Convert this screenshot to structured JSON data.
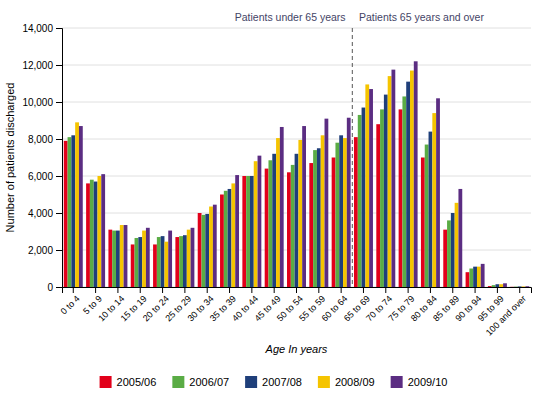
{
  "chart_data": {
    "type": "bar",
    "categories": [
      "0 to 4",
      "5 to 9",
      "10 to 14",
      "15 to 19",
      "20 to 24",
      "25 to 29",
      "30 to 34",
      "35 to 39",
      "40 to 44",
      "45 to 49",
      "50 to 54",
      "55 to 59",
      "60 to 64",
      "65 to 69",
      "70 to 74",
      "75 to 79",
      "80 to 84",
      "85 to 89",
      "90 to 94",
      "95 to 99",
      "100 and over"
    ],
    "series": [
      {
        "name": "2005/06",
        "color": "#e2001a",
        "values": [
          7900,
          5600,
          3100,
          2300,
          2300,
          2700,
          4000,
          5000,
          6000,
          6400,
          6200,
          6700,
          7000,
          8100,
          8800,
          9600,
          7000,
          3100,
          800,
          50,
          10
        ]
      },
      {
        "name": "2006/07",
        "color": "#5aac45",
        "values": [
          8100,
          5800,
          3050,
          2650,
          2700,
          2750,
          3900,
          5200,
          6000,
          6850,
          6600,
          7400,
          7800,
          9300,
          9600,
          10300,
          7700,
          3600,
          1000,
          100,
          20
        ]
      },
      {
        "name": "2007/08",
        "color": "#1f3f7a",
        "values": [
          8200,
          5700,
          3050,
          2700,
          2750,
          2800,
          3950,
          5300,
          6000,
          7200,
          7200,
          7500,
          8200,
          9700,
          10400,
          11100,
          8400,
          4000,
          1100,
          150,
          30
        ]
      },
      {
        "name": "2008/09",
        "color": "#f5c400",
        "values": [
          8900,
          6000,
          3350,
          3050,
          2450,
          3100,
          4350,
          5600,
          6800,
          8050,
          7950,
          8200,
          8050,
          10950,
          11400,
          11700,
          9400,
          4550,
          1100,
          150,
          30
        ]
      },
      {
        "name": "2009/10",
        "color": "#5b2d82",
        "values": [
          8700,
          6100,
          3350,
          3200,
          3050,
          3200,
          4450,
          6050,
          7100,
          8650,
          8700,
          9100,
          9150,
          10700,
          11750,
          12200,
          10200,
          5300,
          1250,
          200,
          40
        ]
      }
    ],
    "xlabel": "Age In years",
    "ylabel": "Number of patients discharged",
    "ylim": [
      0,
      14000
    ],
    "yticks": [
      0,
      {
        "value": 2000,
        "label": "2,000"
      },
      {
        "value": 4000,
        "label": "4,000"
      },
      {
        "value": 6000,
        "label": "6,000"
      },
      {
        "value": 8000,
        "label": "8,000"
      },
      {
        "value": 10000,
        "label": "10,000"
      },
      {
        "value": 12000,
        "label": "12,000"
      },
      {
        "value": 14000,
        "label": "14,000"
      }
    ],
    "annotations": [
      {
        "text": "Patients under 65 years",
        "category": "60 to 64"
      },
      {
        "text": "Patients 65 years and over",
        "category": "65 to 69"
      }
    ],
    "grid": true,
    "legend": "bottom"
  }
}
